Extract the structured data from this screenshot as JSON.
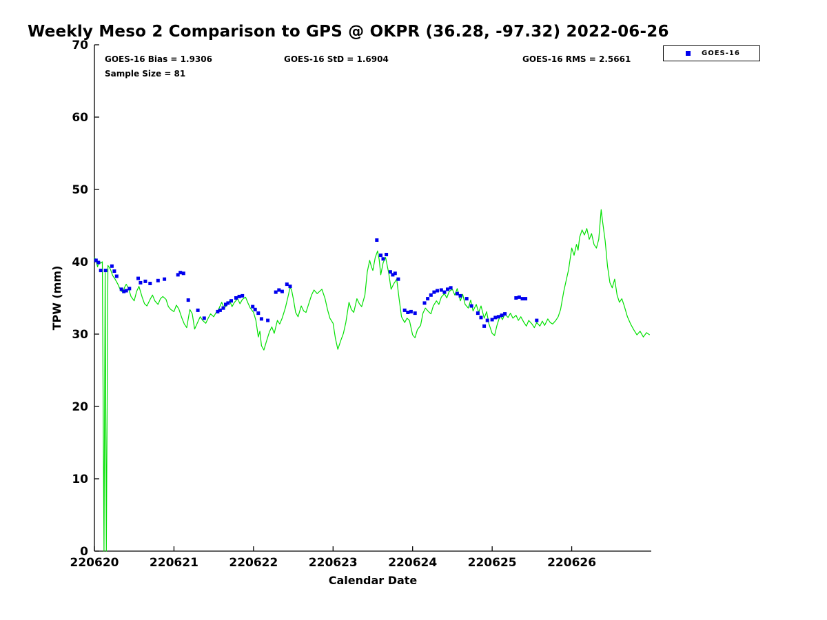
{
  "chart_data": {
    "type": "line+scatter",
    "title": "Weekly Meso 2 Comparison to GPS @ OKPR (36.28, -97.32) 2022-06-26",
    "xlabel": "Calendar Date",
    "ylabel": "TPW (mm)",
    "x_encoding": "days since 220620",
    "xlim": [
      0,
      7
    ],
    "ylim": [
      0,
      70
    ],
    "grid": false,
    "xticks": {
      "positions": [
        0,
        1,
        2,
        3,
        4,
        5,
        6
      ],
      "labels": [
        "220620",
        "220621",
        "220622",
        "220623",
        "220624",
        "220625",
        "220626"
      ]
    },
    "yticks": [
      0,
      10,
      20,
      30,
      40,
      50,
      60,
      70
    ],
    "legend": {
      "position": "top-right-outside",
      "entries": [
        "GOES-16"
      ]
    },
    "annotations": [
      "GOES-16 Bias = 1.9306",
      "GOES-16 StD = 1.6904",
      "GOES-16 RMS = 2.5661",
      "Sample Size = 81"
    ],
    "sample_size": 81,
    "series": [
      {
        "name": "GPS",
        "type": "line",
        "color": "#00e000",
        "points": [
          [
            0.0,
            40.6
          ],
          [
            0.02,
            40.2
          ],
          [
            0.04,
            39.3
          ],
          [
            0.06,
            40.1
          ],
          [
            0.08,
            39.8
          ],
          [
            0.1,
            40.0
          ],
          [
            0.12,
            0.0
          ],
          [
            0.135,
            38.5
          ],
          [
            0.15,
            0.0
          ],
          [
            0.17,
            39.5
          ],
          [
            0.2,
            39.0
          ],
          [
            0.23,
            38.1
          ],
          [
            0.26,
            37.6
          ],
          [
            0.3,
            36.8
          ],
          [
            0.33,
            36.0
          ],
          [
            0.36,
            35.8
          ],
          [
            0.38,
            36.5
          ],
          [
            0.4,
            36.9
          ],
          [
            0.43,
            36.3
          ],
          [
            0.46,
            35.2
          ],
          [
            0.5,
            34.6
          ],
          [
            0.53,
            35.9
          ],
          [
            0.56,
            36.6
          ],
          [
            0.6,
            35.1
          ],
          [
            0.63,
            34.2
          ],
          [
            0.66,
            33.9
          ],
          [
            0.7,
            34.8
          ],
          [
            0.73,
            35.4
          ],
          [
            0.76,
            34.6
          ],
          [
            0.8,
            34.1
          ],
          [
            0.83,
            34.9
          ],
          [
            0.86,
            35.2
          ],
          [
            0.9,
            34.8
          ],
          [
            0.93,
            33.8
          ],
          [
            0.96,
            33.4
          ],
          [
            1.0,
            33.1
          ],
          [
            1.03,
            34.0
          ],
          [
            1.06,
            33.5
          ],
          [
            1.1,
            32.2
          ],
          [
            1.13,
            31.4
          ],
          [
            1.16,
            30.9
          ],
          [
            1.2,
            33.4
          ],
          [
            1.23,
            32.8
          ],
          [
            1.26,
            30.7
          ],
          [
            1.3,
            31.7
          ],
          [
            1.33,
            32.4
          ],
          [
            1.36,
            31.9
          ],
          [
            1.4,
            31.5
          ],
          [
            1.43,
            32.2
          ],
          [
            1.46,
            32.8
          ],
          [
            1.5,
            32.4
          ],
          [
            1.53,
            33.0
          ],
          [
            1.56,
            33.4
          ],
          [
            1.6,
            34.4
          ],
          [
            1.63,
            33.6
          ],
          [
            1.66,
            33.9
          ],
          [
            1.7,
            34.6
          ],
          [
            1.73,
            33.8
          ],
          [
            1.76,
            34.4
          ],
          [
            1.8,
            34.9
          ],
          [
            1.83,
            34.2
          ],
          [
            1.86,
            34.8
          ],
          [
            1.9,
            35.1
          ],
          [
            1.93,
            34.3
          ],
          [
            1.96,
            33.6
          ],
          [
            2.0,
            33.0
          ],
          [
            2.03,
            31.9
          ],
          [
            2.06,
            29.6
          ],
          [
            2.08,
            30.4
          ],
          [
            2.1,
            28.4
          ],
          [
            2.13,
            27.8
          ],
          [
            2.16,
            28.9
          ],
          [
            2.2,
            30.3
          ],
          [
            2.23,
            31.0
          ],
          [
            2.26,
            30.1
          ],
          [
            2.3,
            31.9
          ],
          [
            2.33,
            31.4
          ],
          [
            2.36,
            32.2
          ],
          [
            2.4,
            33.6
          ],
          [
            2.43,
            35.0
          ],
          [
            2.46,
            36.5
          ],
          [
            2.48,
            36.0
          ],
          [
            2.5,
            34.9
          ],
          [
            2.53,
            33.0
          ],
          [
            2.56,
            32.4
          ],
          [
            2.6,
            33.9
          ],
          [
            2.63,
            33.2
          ],
          [
            2.66,
            33.0
          ],
          [
            2.7,
            34.4
          ],
          [
            2.73,
            35.4
          ],
          [
            2.76,
            36.1
          ],
          [
            2.8,
            35.6
          ],
          [
            2.83,
            35.9
          ],
          [
            2.86,
            36.2
          ],
          [
            2.9,
            34.9
          ],
          [
            2.93,
            33.4
          ],
          [
            2.96,
            32.2
          ],
          [
            3.0,
            31.5
          ],
          [
            3.03,
            29.4
          ],
          [
            3.06,
            27.9
          ],
          [
            3.1,
            29.2
          ],
          [
            3.13,
            30.1
          ],
          [
            3.16,
            31.6
          ],
          [
            3.2,
            34.4
          ],
          [
            3.23,
            33.4
          ],
          [
            3.26,
            33.0
          ],
          [
            3.3,
            34.9
          ],
          [
            3.33,
            34.2
          ],
          [
            3.36,
            33.8
          ],
          [
            3.4,
            35.4
          ],
          [
            3.43,
            38.6
          ],
          [
            3.46,
            40.2
          ],
          [
            3.48,
            39.4
          ],
          [
            3.5,
            38.8
          ],
          [
            3.53,
            40.6
          ],
          [
            3.56,
            41.5
          ],
          [
            3.58,
            40.3
          ],
          [
            3.6,
            38.2
          ],
          [
            3.63,
            39.9
          ],
          [
            3.66,
            40.6
          ],
          [
            3.7,
            38.4
          ],
          [
            3.73,
            36.2
          ],
          [
            3.76,
            36.9
          ],
          [
            3.8,
            37.6
          ],
          [
            3.83,
            34.9
          ],
          [
            3.86,
            32.4
          ],
          [
            3.9,
            31.6
          ],
          [
            3.93,
            32.2
          ],
          [
            3.96,
            31.9
          ],
          [
            4.0,
            29.9
          ],
          [
            4.03,
            29.5
          ],
          [
            4.06,
            30.6
          ],
          [
            4.1,
            31.2
          ],
          [
            4.13,
            32.9
          ],
          [
            4.16,
            33.6
          ],
          [
            4.2,
            33.1
          ],
          [
            4.23,
            32.8
          ],
          [
            4.26,
            33.9
          ],
          [
            4.3,
            34.6
          ],
          [
            4.33,
            34.1
          ],
          [
            4.36,
            35.1
          ],
          [
            4.4,
            35.6
          ],
          [
            4.43,
            35.0
          ],
          [
            4.46,
            35.9
          ],
          [
            4.5,
            36.2
          ],
          [
            4.53,
            35.4
          ],
          [
            4.56,
            36.3
          ],
          [
            4.6,
            34.6
          ],
          [
            4.63,
            35.5
          ],
          [
            4.66,
            34.1
          ],
          [
            4.7,
            33.6
          ],
          [
            4.73,
            34.7
          ],
          [
            4.76,
            33.2
          ],
          [
            4.8,
            34.1
          ],
          [
            4.83,
            33.0
          ],
          [
            4.86,
            33.9
          ],
          [
            4.9,
            32.2
          ],
          [
            4.93,
            33.1
          ],
          [
            4.96,
            31.4
          ],
          [
            5.0,
            30.1
          ],
          [
            5.03,
            29.8
          ],
          [
            5.06,
            31.2
          ],
          [
            5.1,
            32.6
          ],
          [
            5.13,
            32.0
          ],
          [
            5.16,
            32.8
          ],
          [
            5.2,
            32.3
          ],
          [
            5.23,
            32.9
          ],
          [
            5.26,
            32.2
          ],
          [
            5.3,
            32.6
          ],
          [
            5.33,
            31.9
          ],
          [
            5.36,
            32.4
          ],
          [
            5.4,
            31.6
          ],
          [
            5.43,
            31.1
          ],
          [
            5.46,
            31.9
          ],
          [
            5.5,
            31.4
          ],
          [
            5.53,
            30.9
          ],
          [
            5.56,
            31.6
          ],
          [
            5.6,
            31.1
          ],
          [
            5.63,
            31.8
          ],
          [
            5.66,
            31.2
          ],
          [
            5.7,
            32.1
          ],
          [
            5.73,
            31.6
          ],
          [
            5.76,
            31.4
          ],
          [
            5.8,
            31.9
          ],
          [
            5.83,
            32.4
          ],
          [
            5.86,
            33.4
          ],
          [
            5.9,
            35.9
          ],
          [
            5.93,
            37.4
          ],
          [
            5.96,
            38.9
          ],
          [
            6.0,
            41.9
          ],
          [
            6.03,
            40.9
          ],
          [
            6.06,
            42.4
          ],
          [
            6.08,
            41.6
          ],
          [
            6.1,
            43.4
          ],
          [
            6.13,
            44.4
          ],
          [
            6.16,
            43.7
          ],
          [
            6.19,
            44.6
          ],
          [
            6.22,
            43.1
          ],
          [
            6.25,
            43.9
          ],
          [
            6.28,
            42.4
          ],
          [
            6.31,
            41.9
          ],
          [
            6.34,
            43.1
          ],
          [
            6.37,
            47.2
          ],
          [
            6.39,
            45.4
          ],
          [
            6.42,
            42.9
          ],
          [
            6.45,
            39.4
          ],
          [
            6.48,
            37.1
          ],
          [
            6.51,
            36.4
          ],
          [
            6.54,
            37.6
          ],
          [
            6.57,
            35.4
          ],
          [
            6.6,
            34.4
          ],
          [
            6.63,
            34.9
          ],
          [
            6.66,
            33.9
          ],
          [
            6.7,
            32.4
          ],
          [
            6.74,
            31.4
          ],
          [
            6.78,
            30.6
          ],
          [
            6.82,
            29.9
          ],
          [
            6.86,
            30.4
          ],
          [
            6.9,
            29.6
          ],
          [
            6.94,
            30.2
          ],
          [
            6.98,
            29.9
          ]
        ]
      },
      {
        "name": "GOES-16",
        "type": "scatter",
        "marker": "square",
        "color": "#0000ee",
        "size": 5,
        "points": [
          [
            0.02,
            40.2
          ],
          [
            0.05,
            39.9
          ],
          [
            0.08,
            38.8
          ],
          [
            0.14,
            38.8
          ],
          [
            0.22,
            39.4
          ],
          [
            0.25,
            38.7
          ],
          [
            0.28,
            38.0
          ],
          [
            0.34,
            36.2
          ],
          [
            0.37,
            35.9
          ],
          [
            0.4,
            36.0
          ],
          [
            0.44,
            36.3
          ],
          [
            0.55,
            37.7
          ],
          [
            0.58,
            37.1
          ],
          [
            0.64,
            37.3
          ],
          [
            0.7,
            37.0
          ],
          [
            0.8,
            37.4
          ],
          [
            0.88,
            37.6
          ],
          [
            1.05,
            38.2
          ],
          [
            1.08,
            38.5
          ],
          [
            1.12,
            38.4
          ],
          [
            1.18,
            34.7
          ],
          [
            1.3,
            33.3
          ],
          [
            1.38,
            32.2
          ],
          [
            1.55,
            33.1
          ],
          [
            1.58,
            33.3
          ],
          [
            1.62,
            33.6
          ],
          [
            1.65,
            34.1
          ],
          [
            1.68,
            34.3
          ],
          [
            1.72,
            34.6
          ],
          [
            1.78,
            35.0
          ],
          [
            1.82,
            35.2
          ],
          [
            1.86,
            35.3
          ],
          [
            1.99,
            33.8
          ],
          [
            2.02,
            33.4
          ],
          [
            2.06,
            32.9
          ],
          [
            2.1,
            32.1
          ],
          [
            2.18,
            31.9
          ],
          [
            2.28,
            35.8
          ],
          [
            2.32,
            36.1
          ],
          [
            2.36,
            35.9
          ],
          [
            2.42,
            36.9
          ],
          [
            2.46,
            36.6
          ],
          [
            3.55,
            43.0
          ],
          [
            3.6,
            40.9
          ],
          [
            3.63,
            40.4
          ],
          [
            3.67,
            41.0
          ],
          [
            3.72,
            38.6
          ],
          [
            3.75,
            38.2
          ],
          [
            3.78,
            38.4
          ],
          [
            3.82,
            37.6
          ],
          [
            3.9,
            33.3
          ],
          [
            3.94,
            33.0
          ],
          [
            3.98,
            33.1
          ],
          [
            4.03,
            32.9
          ],
          [
            4.15,
            34.3
          ],
          [
            4.19,
            34.9
          ],
          [
            4.23,
            35.4
          ],
          [
            4.27,
            35.8
          ],
          [
            4.31,
            36.0
          ],
          [
            4.36,
            36.1
          ],
          [
            4.4,
            35.8
          ],
          [
            4.44,
            36.2
          ],
          [
            4.48,
            36.4
          ],
          [
            4.56,
            35.6
          ],
          [
            4.6,
            35.3
          ],
          [
            4.68,
            34.9
          ],
          [
            4.74,
            33.9
          ],
          [
            4.82,
            32.9
          ],
          [
            4.86,
            32.3
          ],
          [
            4.9,
            31.1
          ],
          [
            4.94,
            31.9
          ],
          [
            5.0,
            32.0
          ],
          [
            5.04,
            32.3
          ],
          [
            5.08,
            32.4
          ],
          [
            5.12,
            32.6
          ],
          [
            5.16,
            32.8
          ],
          [
            5.3,
            35.0
          ],
          [
            5.34,
            35.1
          ],
          [
            5.38,
            34.9
          ],
          [
            5.42,
            34.9
          ],
          [
            5.56,
            31.9
          ]
        ]
      }
    ]
  }
}
